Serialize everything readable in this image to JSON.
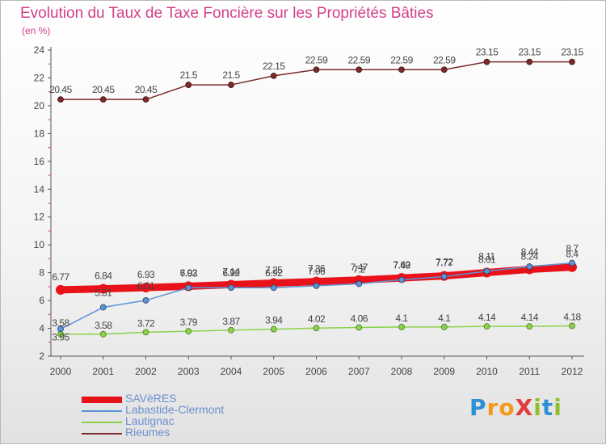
{
  "chart_data": {
    "type": "line",
    "title": "Evolution du Taux de Taxe Foncière sur les Propriétés Bâties",
    "ylabel": "(en %)",
    "xlabel": "",
    "ylim": [
      2,
      24
    ],
    "yticks": [
      "2",
      "4",
      "6",
      "8",
      "10",
      "12",
      "14",
      "16",
      "18",
      "20",
      "22",
      "24"
    ],
    "categories": [
      "2000",
      "2001",
      "2002",
      "2003",
      "2004",
      "2005",
      "2006",
      "2007",
      "2008",
      "2009",
      "2010",
      "2011",
      "2012"
    ],
    "series": [
      {
        "name": "SAVèRES",
        "color": "#e8131a",
        "values": [
          6.77,
          6.84,
          6.93,
          7.03,
          7.14,
          7.25,
          7.36,
          7.47,
          7.62,
          7.77,
          8.01,
          8.24,
          8.4
        ],
        "labels": [
          "6.77",
          "6.84",
          "6.93",
          "7.03",
          "7.14",
          "7.25",
          "7.36",
          "7.47",
          "7.62",
          "7.77",
          "8.01",
          "8.24",
          "8.4"
        ]
      },
      {
        "name": "Labastide-Clermont",
        "color": "#5b94d6",
        "values": [
          3.95,
          5.51,
          6.01,
          6.92,
          6.92,
          6.92,
          7.06,
          7.2,
          7.49,
          7.72,
          8.11,
          8.44,
          8.7
        ],
        "labels": [
          "3.95",
          "5.51",
          "6.01",
          "6.92",
          "6.92",
          "6.92",
          "7.06",
          "7.2",
          "7.49",
          "7.72",
          "8.11",
          "8.44",
          "8.7"
        ]
      },
      {
        "name": "Lautignac",
        "color": "#8ad24b",
        "values": [
          3.58,
          3.58,
          3.72,
          3.79,
          3.87,
          3.94,
          4.02,
          4.06,
          4.1,
          4.1,
          4.14,
          4.14,
          4.18
        ],
        "labels": [
          "3.58",
          "3.58",
          "3.72",
          "3.79",
          "3.87",
          "3.94",
          "4.02",
          "4.06",
          "4.1",
          "4.1",
          "4.14",
          "4.14",
          "4.18"
        ]
      },
      {
        "name": "Rieumes",
        "color": "#7a2a2a",
        "values": [
          20.45,
          20.45,
          20.45,
          21.5,
          21.5,
          22.15,
          22.59,
          22.59,
          22.59,
          22.59,
          23.15,
          23.15,
          23.15
        ],
        "labels": [
          "20.45",
          "20.45",
          "20.45",
          "21.5",
          "21.5",
          "22.15",
          "22.59",
          "22.59",
          "22.59",
          "22.59",
          "23.15",
          "23.15",
          "23.15"
        ]
      }
    ],
    "legend": "bottom-left",
    "grid": false
  },
  "logo": {
    "text": "ProXiti",
    "letters": [
      "P",
      "r",
      "o",
      "X",
      "i",
      "t",
      "i"
    ],
    "colors": [
      "#2d8fd6",
      "#f39a1c",
      "#f39a1c",
      "#e23d3d",
      "#8fbf2a",
      "#2d8fd6",
      "#8fbf2a"
    ]
  }
}
